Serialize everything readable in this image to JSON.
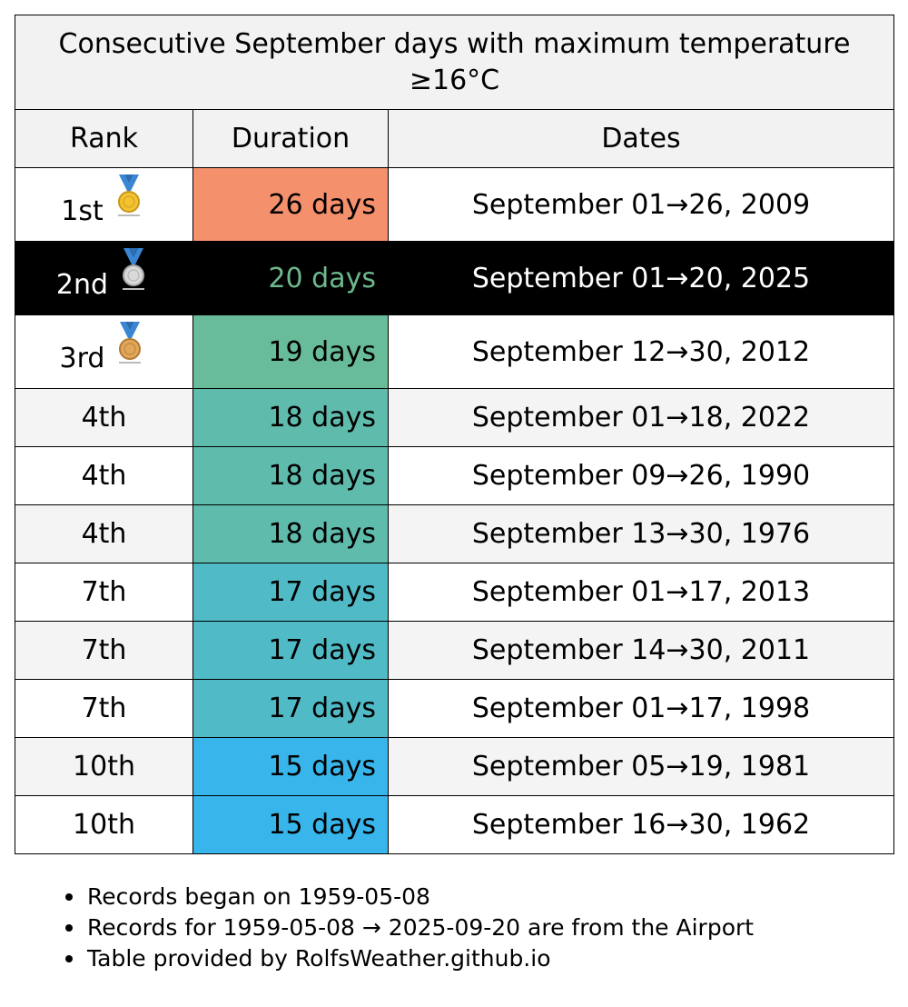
{
  "chart_data": {
    "type": "table",
    "title": "Consecutive September days with maximum temperature ≥16°C",
    "columns": [
      "Rank",
      "Duration",
      "Dates"
    ],
    "rows": [
      {
        "rank": "1st",
        "medal": "gold-medal-icon",
        "duration_days": 26,
        "duration": "26 days",
        "dates": "September 01→26, 2009",
        "duration_color": "#f5906d",
        "highlight": false
      },
      {
        "rank": "2nd",
        "medal": "silver-medal-icon",
        "duration_days": 20,
        "duration": "20 days",
        "dates": "September 01→20, 2025",
        "duration_color": "#6db88d",
        "highlight": true
      },
      {
        "rank": "3rd",
        "medal": "bronze-medal-icon",
        "duration_days": 19,
        "duration": "19 days",
        "dates": "September 12→30, 2012",
        "duration_color": "#68bc9a",
        "highlight": false
      },
      {
        "rank": "4th",
        "medal": "",
        "duration_days": 18,
        "duration": "18 days",
        "dates": "September 01→18, 2022",
        "duration_color": "#5fbcad",
        "highlight": false
      },
      {
        "rank": "4th",
        "medal": "",
        "duration_days": 18,
        "duration": "18 days",
        "dates": "September 09→26, 1990",
        "duration_color": "#5fbcad",
        "highlight": false
      },
      {
        "rank": "4th",
        "medal": "",
        "duration_days": 18,
        "duration": "18 days",
        "dates": "September 13→30, 1976",
        "duration_color": "#5fbcad",
        "highlight": false
      },
      {
        "rank": "7th",
        "medal": "",
        "duration_days": 17,
        "duration": "17 days",
        "dates": "September 01→17, 2013",
        "duration_color": "#50bac6",
        "highlight": false
      },
      {
        "rank": "7th",
        "medal": "",
        "duration_days": 17,
        "duration": "17 days",
        "dates": "September 14→30, 2011",
        "duration_color": "#50bac6",
        "highlight": false
      },
      {
        "rank": "7th",
        "medal": "",
        "duration_days": 17,
        "duration": "17 days",
        "dates": "September 01→17, 1998",
        "duration_color": "#50bac6",
        "highlight": false
      },
      {
        "rank": "10th",
        "medal": "",
        "duration_days": 15,
        "duration": "15 days",
        "dates": "September 05→19, 1981",
        "duration_color": "#38b6ec",
        "highlight": false
      },
      {
        "rank": "10th",
        "medal": "",
        "duration_days": 15,
        "duration": "15 days",
        "dates": "September 16→30, 1962",
        "duration_color": "#38b6ec",
        "highlight": false
      }
    ],
    "highlight_text_color": "#6db88d",
    "notes": [
      "Records began on 1959-05-08",
      "Records for 1959-05-08 → 2025-09-20 are from the Airport",
      "Table provided by RolfsWeather.github.io"
    ]
  }
}
